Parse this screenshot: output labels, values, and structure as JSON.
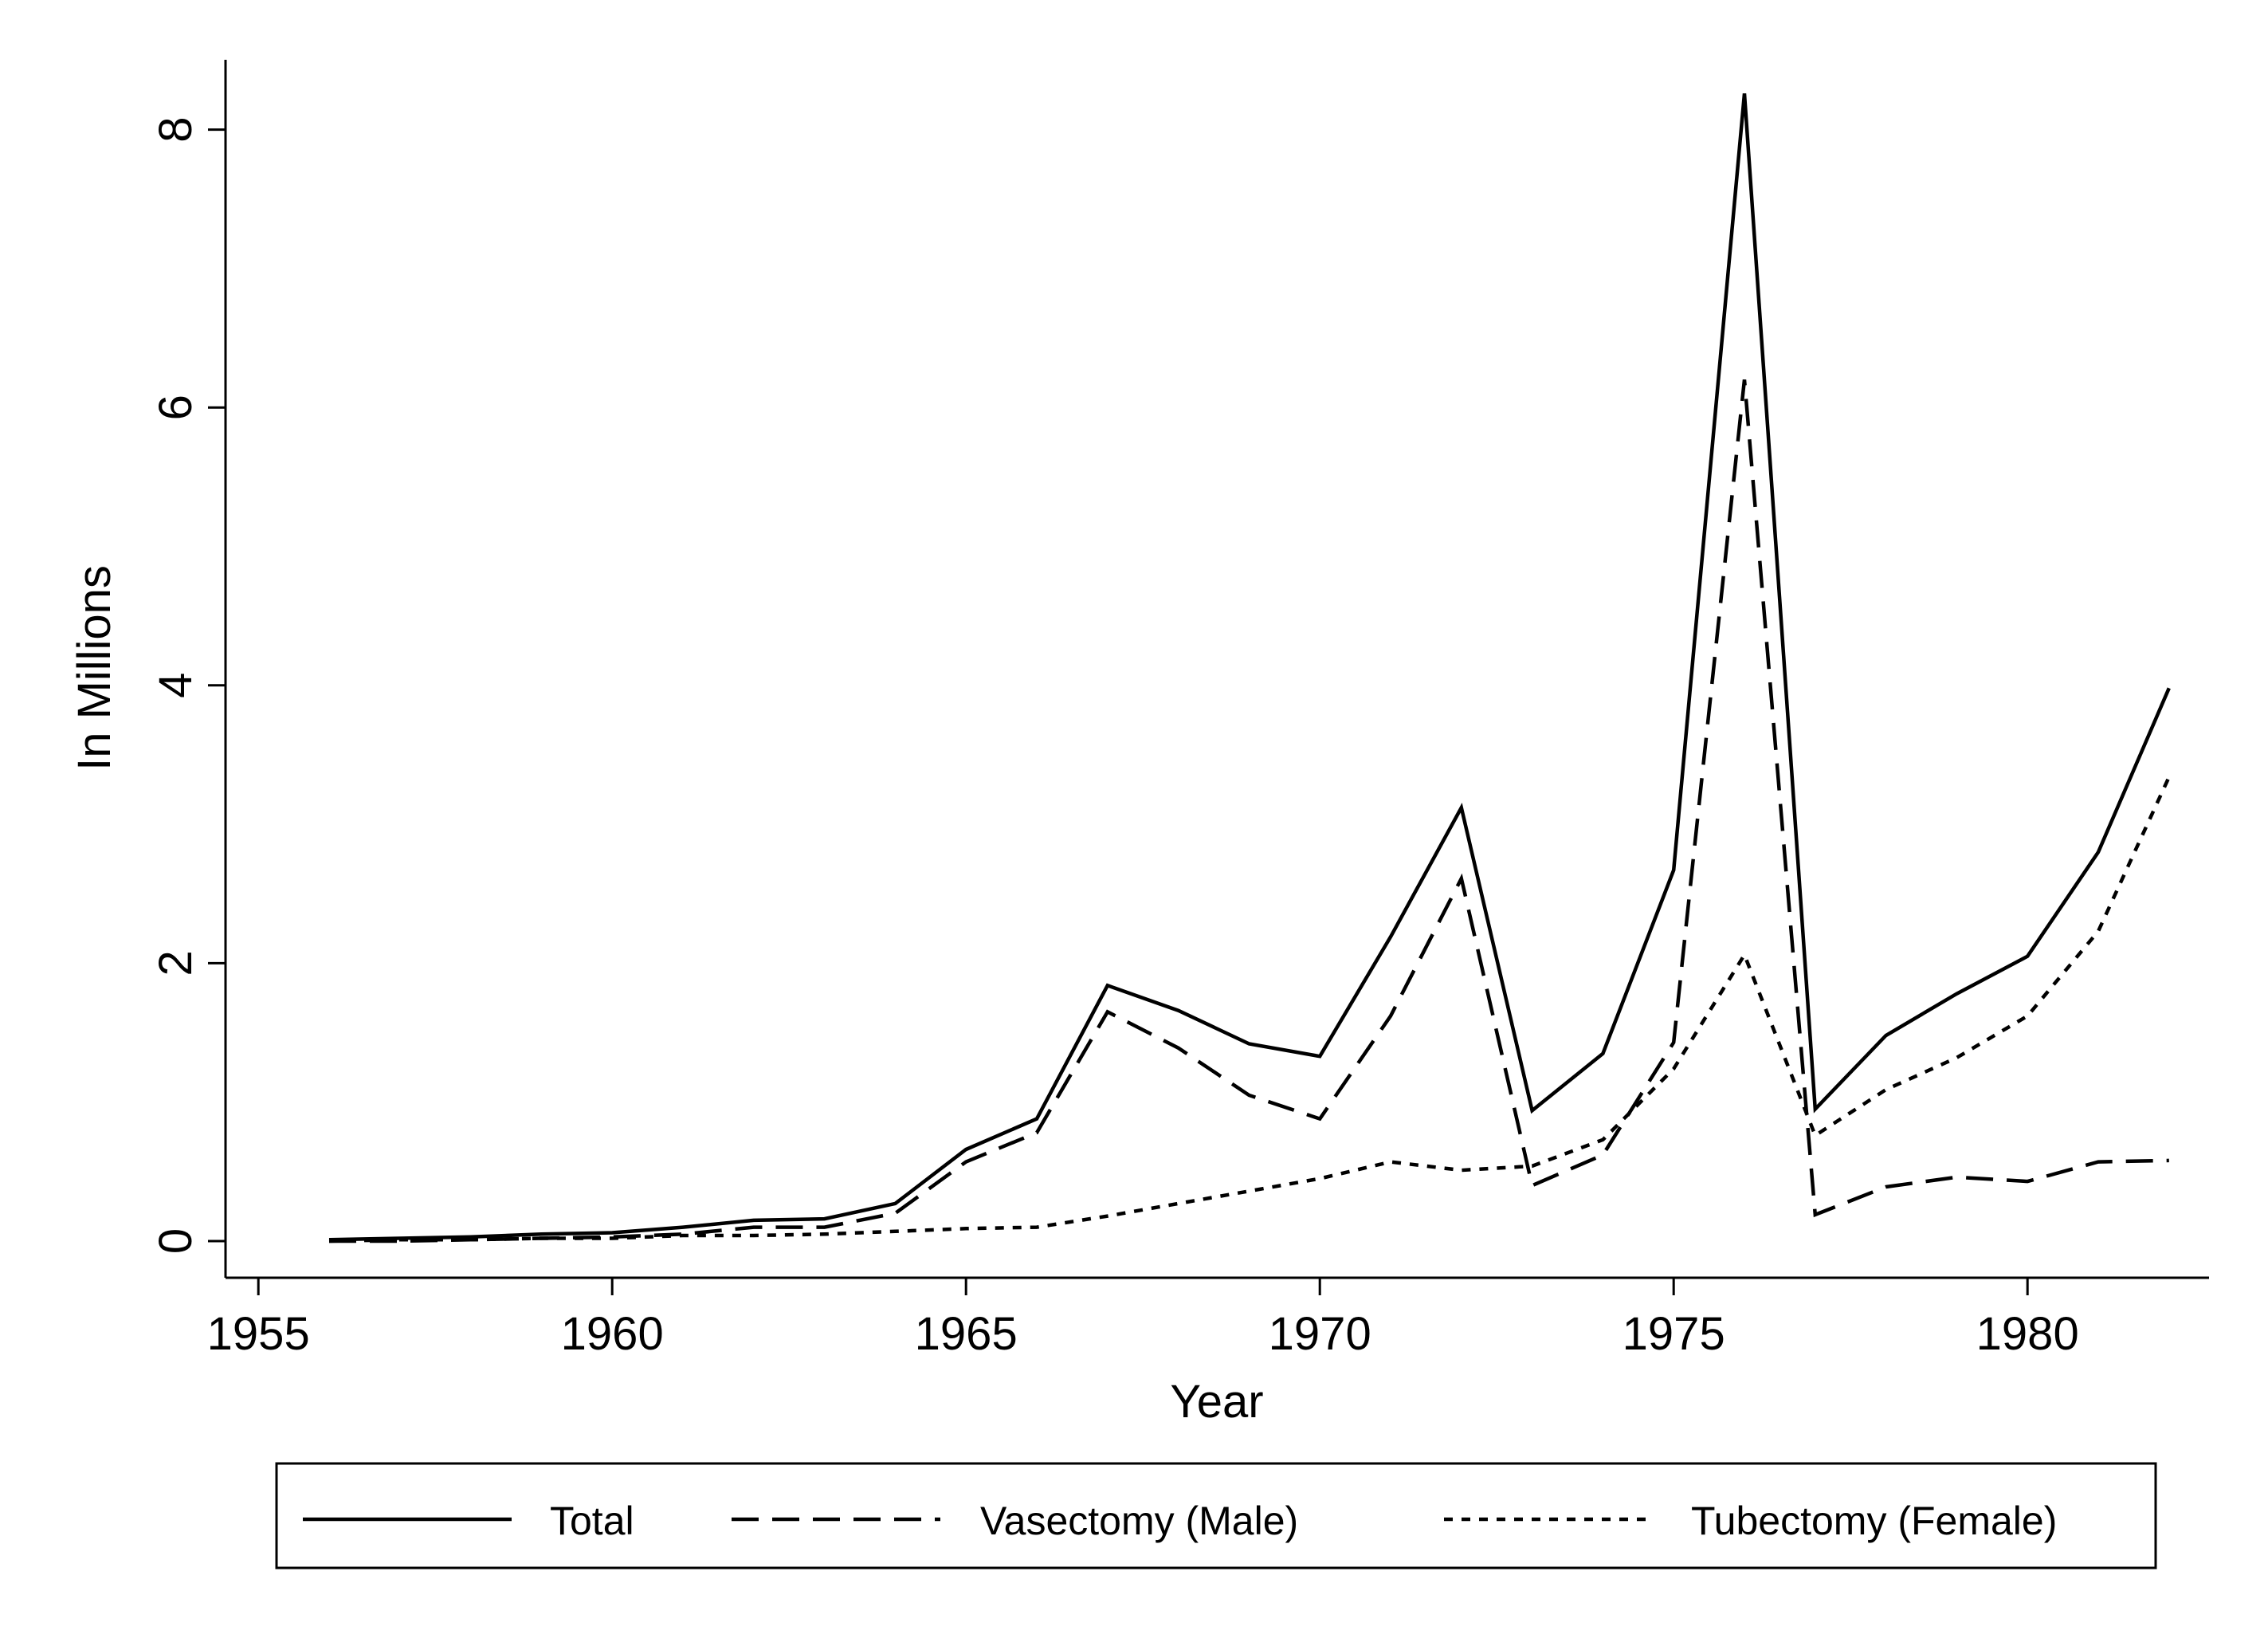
{
  "chart_data": {
    "type": "line",
    "title": "",
    "xlabel": "Year",
    "ylabel": "In Millions",
    "xlim": [
      1955,
      1983
    ],
    "ylim": [
      0,
      8.5
    ],
    "x_ticks": [
      1955,
      1960,
      1965,
      1970,
      1975,
      1980
    ],
    "y_ticks": [
      0,
      2,
      4,
      6,
      8
    ],
    "grid": false,
    "legend_position": "bottom",
    "x": [
      1956,
      1957,
      1958,
      1959,
      1960,
      1961,
      1962,
      1963,
      1964,
      1965,
      1966,
      1967,
      1968,
      1969,
      1970,
      1971,
      1972,
      1973,
      1974,
      1975,
      1976,
      1977,
      1978,
      1979,
      1980,
      1981,
      1982
    ],
    "series": [
      {
        "name": "Total",
        "style": "solid",
        "values": [
          0.01,
          0.02,
          0.03,
          0.05,
          0.06,
          0.1,
          0.15,
          0.16,
          0.27,
          0.66,
          0.88,
          1.84,
          1.66,
          1.42,
          1.33,
          2.19,
          3.12,
          0.94,
          1.35,
          2.67,
          8.26,
          0.95,
          1.48,
          1.78,
          2.05,
          2.8,
          3.98
        ]
      },
      {
        "name": "Vasectomy (Male)",
        "style": "dashed",
        "values": [
          0.0,
          0.0,
          0.01,
          0.02,
          0.03,
          0.05,
          0.1,
          0.1,
          0.2,
          0.57,
          0.78,
          1.65,
          1.39,
          1.05,
          0.88,
          1.62,
          2.61,
          0.4,
          0.62,
          1.43,
          6.2,
          0.19,
          0.39,
          0.46,
          0.43,
          0.57,
          0.58
        ]
      },
      {
        "name": "Tubectomy (Female)",
        "style": "dotted",
        "values": [
          0.0,
          0.01,
          0.01,
          0.02,
          0.02,
          0.04,
          0.04,
          0.05,
          0.07,
          0.09,
          0.1,
          0.18,
          0.27,
          0.36,
          0.45,
          0.57,
          0.51,
          0.54,
          0.73,
          1.24,
          2.06,
          0.76,
          1.09,
          1.32,
          1.62,
          2.23,
          3.34
        ]
      }
    ]
  },
  "colors": {
    "background": "#ffffff",
    "lines": "#000000"
  }
}
